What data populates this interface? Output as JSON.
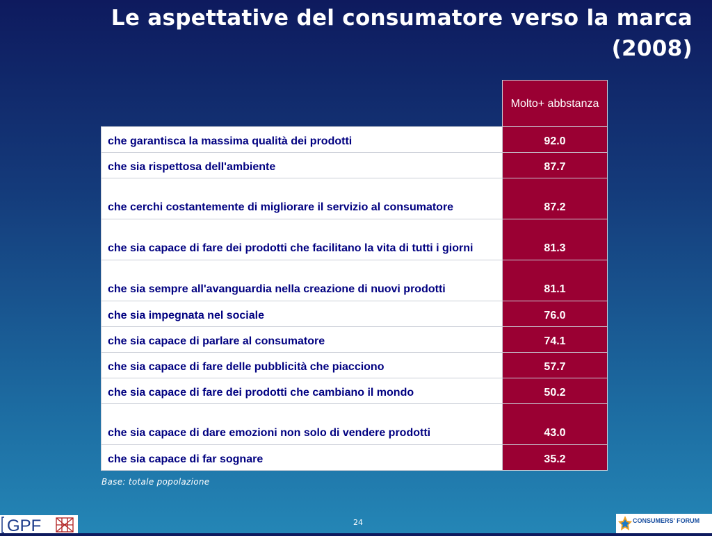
{
  "slide": {
    "title": "Le aspettative del consumatore verso la marca (2008)",
    "column_header": "Molto+ abbstanza",
    "rows": [
      {
        "label": "che garantisca la massima qualità dei prodotti",
        "value": "92.0"
      },
      {
        "label": "che sia rispettosa dell'ambiente",
        "value": "87.7"
      },
      {
        "label": "che cerchi costantemente di migliorare il servizio al consumatore",
        "value": "87.2"
      },
      {
        "label": "che sia capace di fare dei prodotti che facilitano la vita di tutti i giorni",
        "value": "81.3"
      },
      {
        "label": "che sia sempre all'avanguardia nella creazione di nuovi prodotti",
        "value": "81.1"
      },
      {
        "label": "che sia impegnata nel sociale",
        "value": "76.0"
      },
      {
        "label": "che sia capace di parlare al consumatore",
        "value": "74.1"
      },
      {
        "label": "che sia capace di fare delle pubblicità che piacciono",
        "value": "57.7"
      },
      {
        "label": "che sia capace di fare dei prodotti che cambiano il mondo",
        "value": "50.2"
      },
      {
        "label": "che sia capace di dare emozioni non solo di vendere prodotti",
        "value": "43.0"
      },
      {
        "label": "che sia capace di far sognare",
        "value": "35.2"
      }
    ],
    "base_note": "Base: totale popolazione",
    "page_number": "24"
  },
  "logos": {
    "left": "GPF",
    "right": "CONSUMERS' FORUM"
  },
  "colors": {
    "value_cell": "#9a0033",
    "label_text": "#000080",
    "background_top": "#0e1a5e",
    "background_bottom": "#2486b6"
  }
}
